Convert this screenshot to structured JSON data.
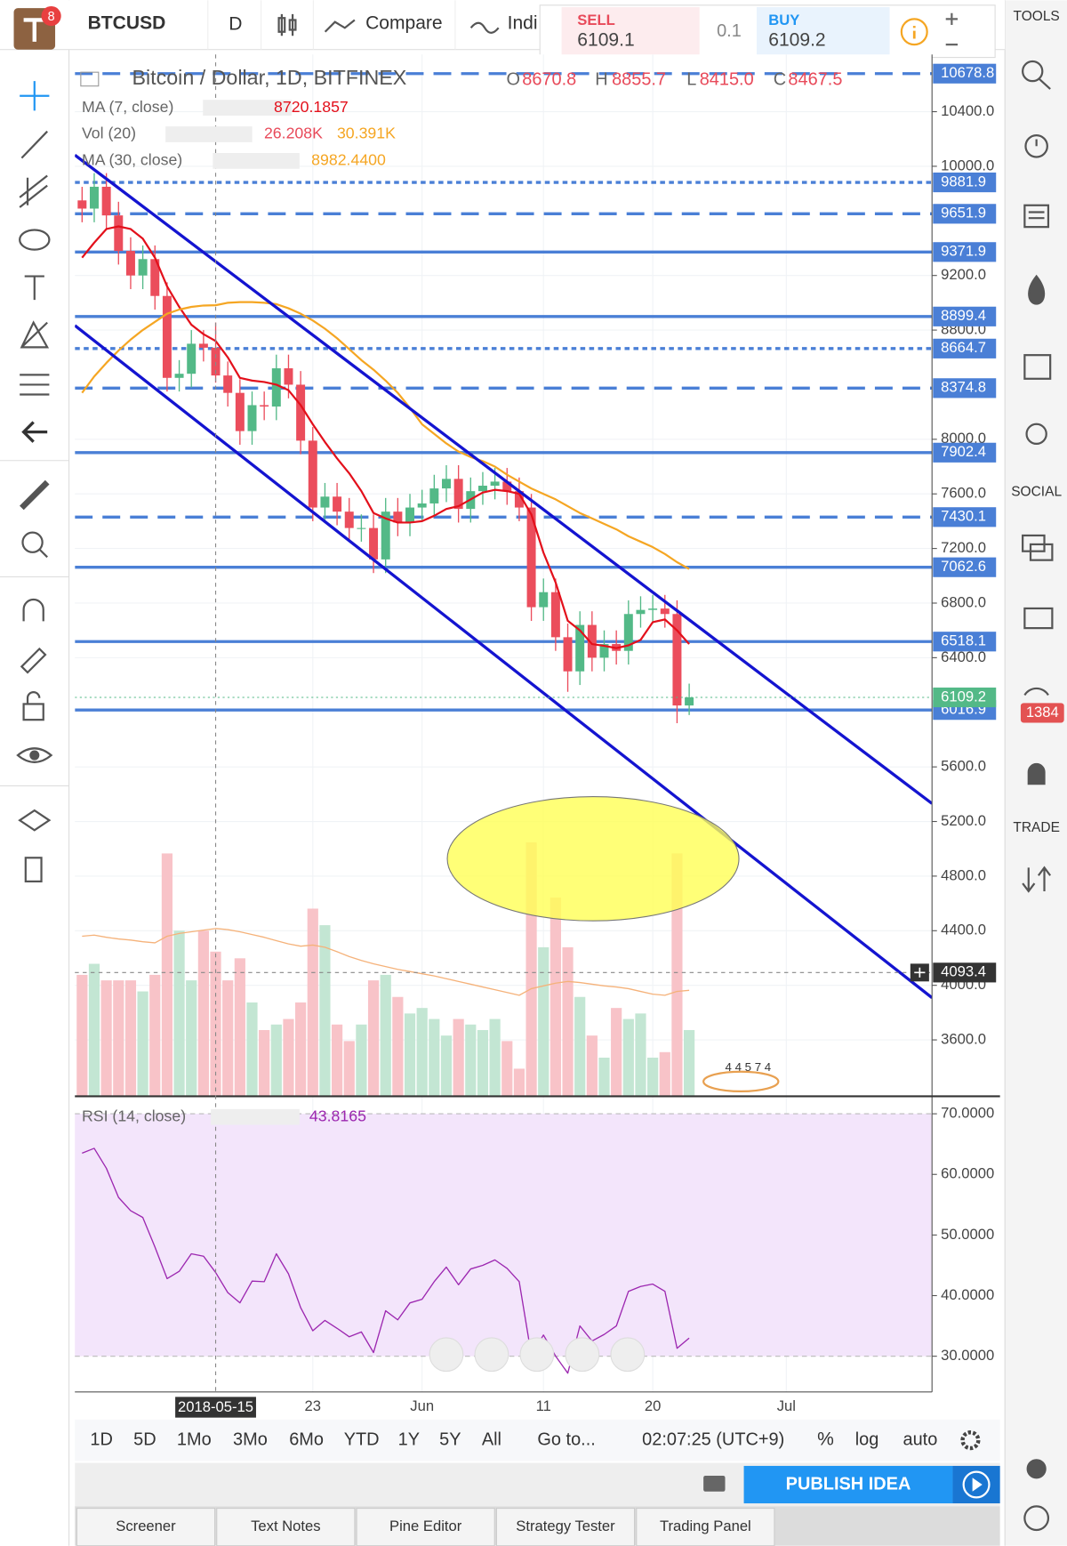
{
  "toolbar": {
    "badge": "8",
    "symbol": "BTCUSD",
    "interval": "D",
    "compare": "Compare",
    "indicators": "Indi",
    "sell_label": "SELL",
    "sell_price": "6109.1",
    "spread": "0.1",
    "buy_label": "BUY",
    "buy_price": "6109.2"
  },
  "right_panel": {
    "tools": "TOOLS",
    "social": "SOCIAL",
    "chat_count": "1384",
    "trade": "TRADE"
  },
  "legend": {
    "title": "Bitcoin / Dollar, 1D, BITFINEX",
    "o": "O",
    "open": "8670.8",
    "h": "H",
    "high": "8855.7",
    "l": "L",
    "low": "8415.0",
    "c": "C",
    "close": "8467.5",
    "ma7_value": "8720.1857",
    "vol_value": "26.208K",
    "vol_ma_value": "30.391K",
    "ma30_value": "8982.4400",
    "rsi_value": "43.8165"
  },
  "chart_data": {
    "type": "candlestick",
    "x": [
      "2018-05-04",
      "2018-05-05",
      "2018-05-06",
      "2018-05-07",
      "2018-05-08",
      "2018-05-09",
      "2018-05-10",
      "2018-05-11",
      "2018-05-12",
      "2018-05-13",
      "2018-05-14",
      "2018-05-15",
      "2018-05-16",
      "2018-05-17",
      "2018-05-18",
      "2018-05-19",
      "2018-05-20",
      "2018-05-21",
      "2018-05-22",
      "2018-05-23",
      "2018-05-24",
      "2018-05-25",
      "2018-05-26",
      "2018-05-27",
      "2018-05-28",
      "2018-05-29",
      "2018-05-30",
      "2018-05-31",
      "2018-06-01",
      "2018-06-02",
      "2018-06-03",
      "2018-06-04",
      "2018-06-05",
      "2018-06-06",
      "2018-06-07",
      "2018-06-08",
      "2018-06-09",
      "2018-06-10",
      "2018-06-11",
      "2018-06-12",
      "2018-06-13",
      "2018-06-14",
      "2018-06-15",
      "2018-06-16",
      "2018-06-17",
      "2018-06-18",
      "2018-06-19",
      "2018-06-20",
      "2018-06-21",
      "2018-06-22",
      "2018-06-23"
    ],
    "open": [
      9750,
      9690,
      9850,
      9640,
      9380,
      9200,
      9320,
      9050,
      8450,
      8480,
      8700,
      8670.8,
      8467.5,
      8340,
      8060,
      8250,
      8240,
      8520,
      8400,
      7990,
      7500,
      7580,
      7470,
      7350,
      7350,
      7120,
      7470,
      7390,
      7500,
      7530,
      7640,
      7710,
      7490,
      7620,
      7660,
      7690,
      7620,
      7500,
      6770,
      6880,
      6550,
      6300,
      6640,
      6400,
      6500,
      6450,
      6720,
      6750,
      6760,
      6720,
      6050
    ],
    "high": [
      9850,
      9950,
      9950,
      9740,
      9480,
      9420,
      9420,
      9150,
      8580,
      8800,
      8800,
      8855.7,
      8570,
      8440,
      8350,
      8350,
      8620,
      8620,
      8500,
      8090,
      7680,
      7680,
      7570,
      7450,
      7450,
      7570,
      7570,
      7600,
      7630,
      7740,
      7810,
      7810,
      7720,
      7760,
      7790,
      7790,
      7720,
      7600,
      6980,
      6980,
      6650,
      6740,
      6740,
      6600,
      6600,
      6820,
      6850,
      6860,
      6860,
      6820,
      6210
    ],
    "low": [
      9590,
      9590,
      9540,
      9280,
      9100,
      9100,
      8950,
      8350,
      8350,
      8380,
      8570,
      8415.0,
      8240,
      7960,
      7960,
      8140,
      8140,
      8300,
      7890,
      7400,
      7400,
      7370,
      7250,
      7250,
      7020,
      7020,
      7290,
      7290,
      7400,
      7430,
      7540,
      7390,
      7390,
      7520,
      7560,
      7520,
      7400,
      6670,
      6670,
      6450,
      6150,
      6200,
      6300,
      6300,
      6350,
      6350,
      6620,
      6650,
      6620,
      5920,
      5980
    ],
    "close": [
      9690,
      9850,
      9640,
      9380,
      9200,
      9320,
      9050,
      8450,
      8480,
      8700,
      8670.8,
      8467.5,
      8340,
      8060,
      8250,
      8240,
      8520,
      8400,
      7990,
      7500,
      7580,
      7470,
      7350,
      7350,
      7120,
      7470,
      7390,
      7500,
      7530,
      7640,
      7710,
      7490,
      7620,
      7660,
      7690,
      7620,
      7500,
      6770,
      6880,
      6550,
      6300,
      6640,
      6400,
      6500,
      6450,
      6720,
      6750,
      6760,
      6720,
      6050,
      6109.2
    ],
    "up_color": "#53b987",
    "down_color": "#eb4d5c",
    "series": [
      {
        "name": "MA (7, close)",
        "color": "#e3101b",
        "values": [
          9330,
          9440,
          9540,
          9560,
          9540,
          9470,
          9330,
          9120,
          8970,
          8840,
          8770,
          8720.1857,
          8600,
          8450,
          8430,
          8420,
          8400,
          8360,
          8250,
          8110,
          7980,
          7860,
          7750,
          7620,
          7460,
          7420,
          7390,
          7390,
          7400,
          7440,
          7490,
          7510,
          7560,
          7610,
          7630,
          7620,
          7600,
          7450,
          7170,
          6950,
          6670,
          6600,
          6500,
          6487,
          6470,
          6490,
          6530,
          6660,
          6680,
          6600,
          6500
        ]
      },
      {
        "name": "MA (30, close)",
        "color": "#f5a623",
        "values": [
          8340,
          8460,
          8560,
          8650,
          8730,
          8800,
          8860,
          8920,
          8950,
          8970,
          8980,
          8982.44,
          9000,
          9005,
          9005,
          9000,
          8990,
          8960,
          8920,
          8870,
          8810,
          8740,
          8660,
          8580,
          8510,
          8430,
          8340,
          8230,
          8110,
          8040,
          7970,
          7910,
          7870,
          7840,
          7800,
          7740,
          7690,
          7640,
          7600,
          7560,
          7510,
          7460,
          7420,
          7380,
          7340,
          7290,
          7250,
          7210,
          7160,
          7100,
          7050
        ]
      }
    ],
    "volume": {
      "name": "Vol (20)",
      "up_color": "#c3e6d3",
      "down_color": "#f8c3c8",
      "ma_color": "#f5b27a",
      "vlim": [
        0,
        50
      ],
      "values": [
        22,
        24,
        21,
        21,
        21,
        19,
        22,
        44,
        30,
        21,
        30,
        26.208,
        21,
        25,
        17,
        12,
        13,
        14,
        17,
        34,
        31,
        13,
        10,
        13,
        21,
        22,
        18,
        15,
        16,
        14,
        11,
        14,
        13,
        12,
        14,
        10,
        5,
        46,
        27,
        36,
        27,
        18,
        11,
        7,
        16,
        14,
        15,
        7,
        8,
        44,
        12
      ],
      "ma": [
        29,
        29.2,
        28.8,
        28.5,
        28.3,
        28,
        27.8,
        29,
        29.5,
        29.8,
        30.1,
        30.391,
        30.2,
        29.8,
        29.3,
        28.8,
        28.2,
        27.6,
        27.2,
        27.4,
        27,
        26.2,
        25.3,
        24.6,
        24,
        23.5,
        23,
        22.6,
        22.2,
        21.8,
        21.3,
        20.8,
        20.3,
        19.8,
        19.3,
        18.8,
        18.3,
        19.5,
        20,
        20.5,
        20.8,
        20.6,
        20.3,
        20,
        19.8,
        19.5,
        19,
        18.5,
        18.3,
        19,
        19.2
      ]
    },
    "rsi": {
      "name": "RSI (14, close)",
      "color": "#9c27b0",
      "band": [
        30,
        70
      ],
      "band_color": "#f3e5fb",
      "ylim": [
        24.1,
        72.4
      ],
      "yticks": [
        {
          "value": 70,
          "label": "70.0000"
        },
        {
          "value": 60,
          "label": "60.0000"
        },
        {
          "value": 50,
          "label": "50.0000"
        },
        {
          "value": 40,
          "label": "40.0000"
        },
        {
          "value": 30,
          "label": "30.0000"
        }
      ],
      "values": [
        63.5,
        64.3,
        61,
        56.2,
        54,
        52.9,
        48,
        42.8,
        44,
        46.9,
        46.5,
        43.8165,
        40.5,
        38.8,
        42.4,
        42.3,
        46.9,
        43.6,
        38,
        34.2,
        35.9,
        34.6,
        33.2,
        34,
        30.6,
        37.5,
        36,
        38.8,
        39.4,
        42.3,
        44.7,
        41.8,
        44.4,
        45,
        45.9,
        44.5,
        42.3,
        30.2,
        33.5,
        30,
        27.2,
        35,
        32.5,
        33.6,
        35,
        40.7,
        41.5,
        41.9,
        40.7,
        31.3,
        33
      ]
    },
    "xlim": [
      "2018-05-03",
      "2018-07-13"
    ],
    "xticks": [
      {
        "value": "2018-05-23",
        "label": "23"
      },
      {
        "value": "2018-06-01",
        "label": "Jun"
      },
      {
        "value": "2018-06-11",
        "label": "11"
      },
      {
        "value": "2018-06-20",
        "label": "20"
      },
      {
        "value": "2018-07-01",
        "label": "Jul"
      }
    ],
    "ylim": [
      3187,
      10819
    ],
    "yticks": [
      {
        "value": 10400,
        "label": "10400.0"
      },
      {
        "value": 10000,
        "label": "10000.0"
      },
      {
        "value": 9200,
        "label": "9200.0"
      },
      {
        "value": 8800,
        "label": "8800.0"
      },
      {
        "value": 8000,
        "label": "8000.0"
      },
      {
        "value": 7600,
        "label": "7600.0"
      },
      {
        "value": 7200,
        "label": "7200.0"
      },
      {
        "value": 6800,
        "label": "6800.0"
      },
      {
        "value": 6400,
        "label": "6400.0"
      },
      {
        "value": 5600,
        "label": "5600.0"
      },
      {
        "value": 5200,
        "label": "5200.0"
      },
      {
        "value": 4800,
        "label": "4800.0"
      },
      {
        "value": 4400,
        "label": "4400.0"
      },
      {
        "value": 4000,
        "label": "4000.0"
      },
      {
        "value": 3600,
        "label": "3600.0"
      }
    ],
    "grid": true,
    "level_color": "#4a7fd6",
    "levels": [
      {
        "value": 10678.8,
        "style": "dashed"
      },
      {
        "value": 9881.9,
        "style": "dotted"
      },
      {
        "value": 9651.9,
        "style": "dashed"
      },
      {
        "value": 9371.9,
        "style": "solid"
      },
      {
        "value": 8899.4,
        "style": "solid"
      },
      {
        "value": 8664.7,
        "style": "dotted"
      },
      {
        "value": 8374.8,
        "style": "dashed"
      },
      {
        "value": 7902.4,
        "style": "solid"
      },
      {
        "value": 7430.1,
        "style": "dashed"
      },
      {
        "value": 7062.6,
        "style": "solid"
      },
      {
        "value": 6518.1,
        "style": "solid"
      },
      {
        "value": 6016.9,
        "style": "solid"
      }
    ],
    "crosshair": {
      "x": "2018-05-15",
      "y": 4093.4
    }
  },
  "volume_badge": "4 4 5 7 4",
  "bottom_bar": {
    "ranges": [
      "1D",
      "5D",
      "1Mo",
      "3Mo",
      "6Mo",
      "YTD",
      "1Y",
      "5Y",
      "All"
    ],
    "goto": "Go to...",
    "clock": "02:07:25 (UTC+9)",
    "percent": "%",
    "log": "log",
    "auto": "auto",
    "publish": "PUBLISH IDEA",
    "tabs": [
      "Screener",
      "Text Notes",
      "Pine Editor",
      "Strategy Tester",
      "Trading Panel"
    ]
  }
}
